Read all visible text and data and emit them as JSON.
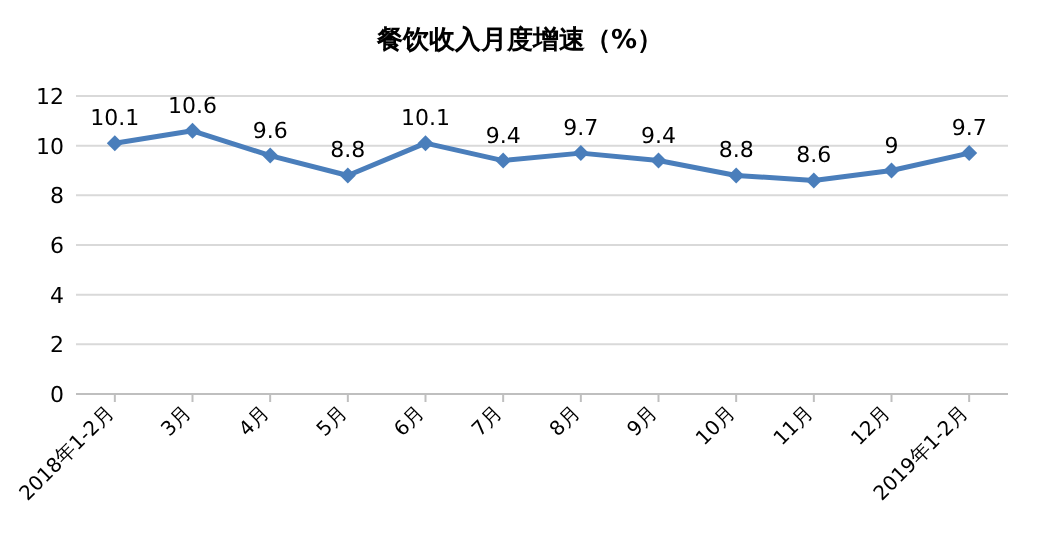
{
  "chart_data": {
    "type": "line",
    "title": "餐饮收入月度增速（%）",
    "categories": [
      "2018年1-2月",
      "3月",
      "4月",
      "5月",
      "6月",
      "7月",
      "8月",
      "9月",
      "10月",
      "11月",
      "12月",
      "2019年1-2月"
    ],
    "series": [
      {
        "color": "#4a7ebb",
        "values": [
          10.1,
          10.6,
          9.6,
          8.8,
          10.1,
          9.4,
          9.7,
          9.4,
          8.8,
          8.6,
          9,
          9.7
        ]
      }
    ],
    "ylim": [
      0,
      12
    ],
    "yticks": [
      0,
      2,
      4,
      6,
      8,
      10,
      12
    ],
    "grid": "y",
    "marker": "diamond",
    "line_style": "solid",
    "data_labels": true
  }
}
